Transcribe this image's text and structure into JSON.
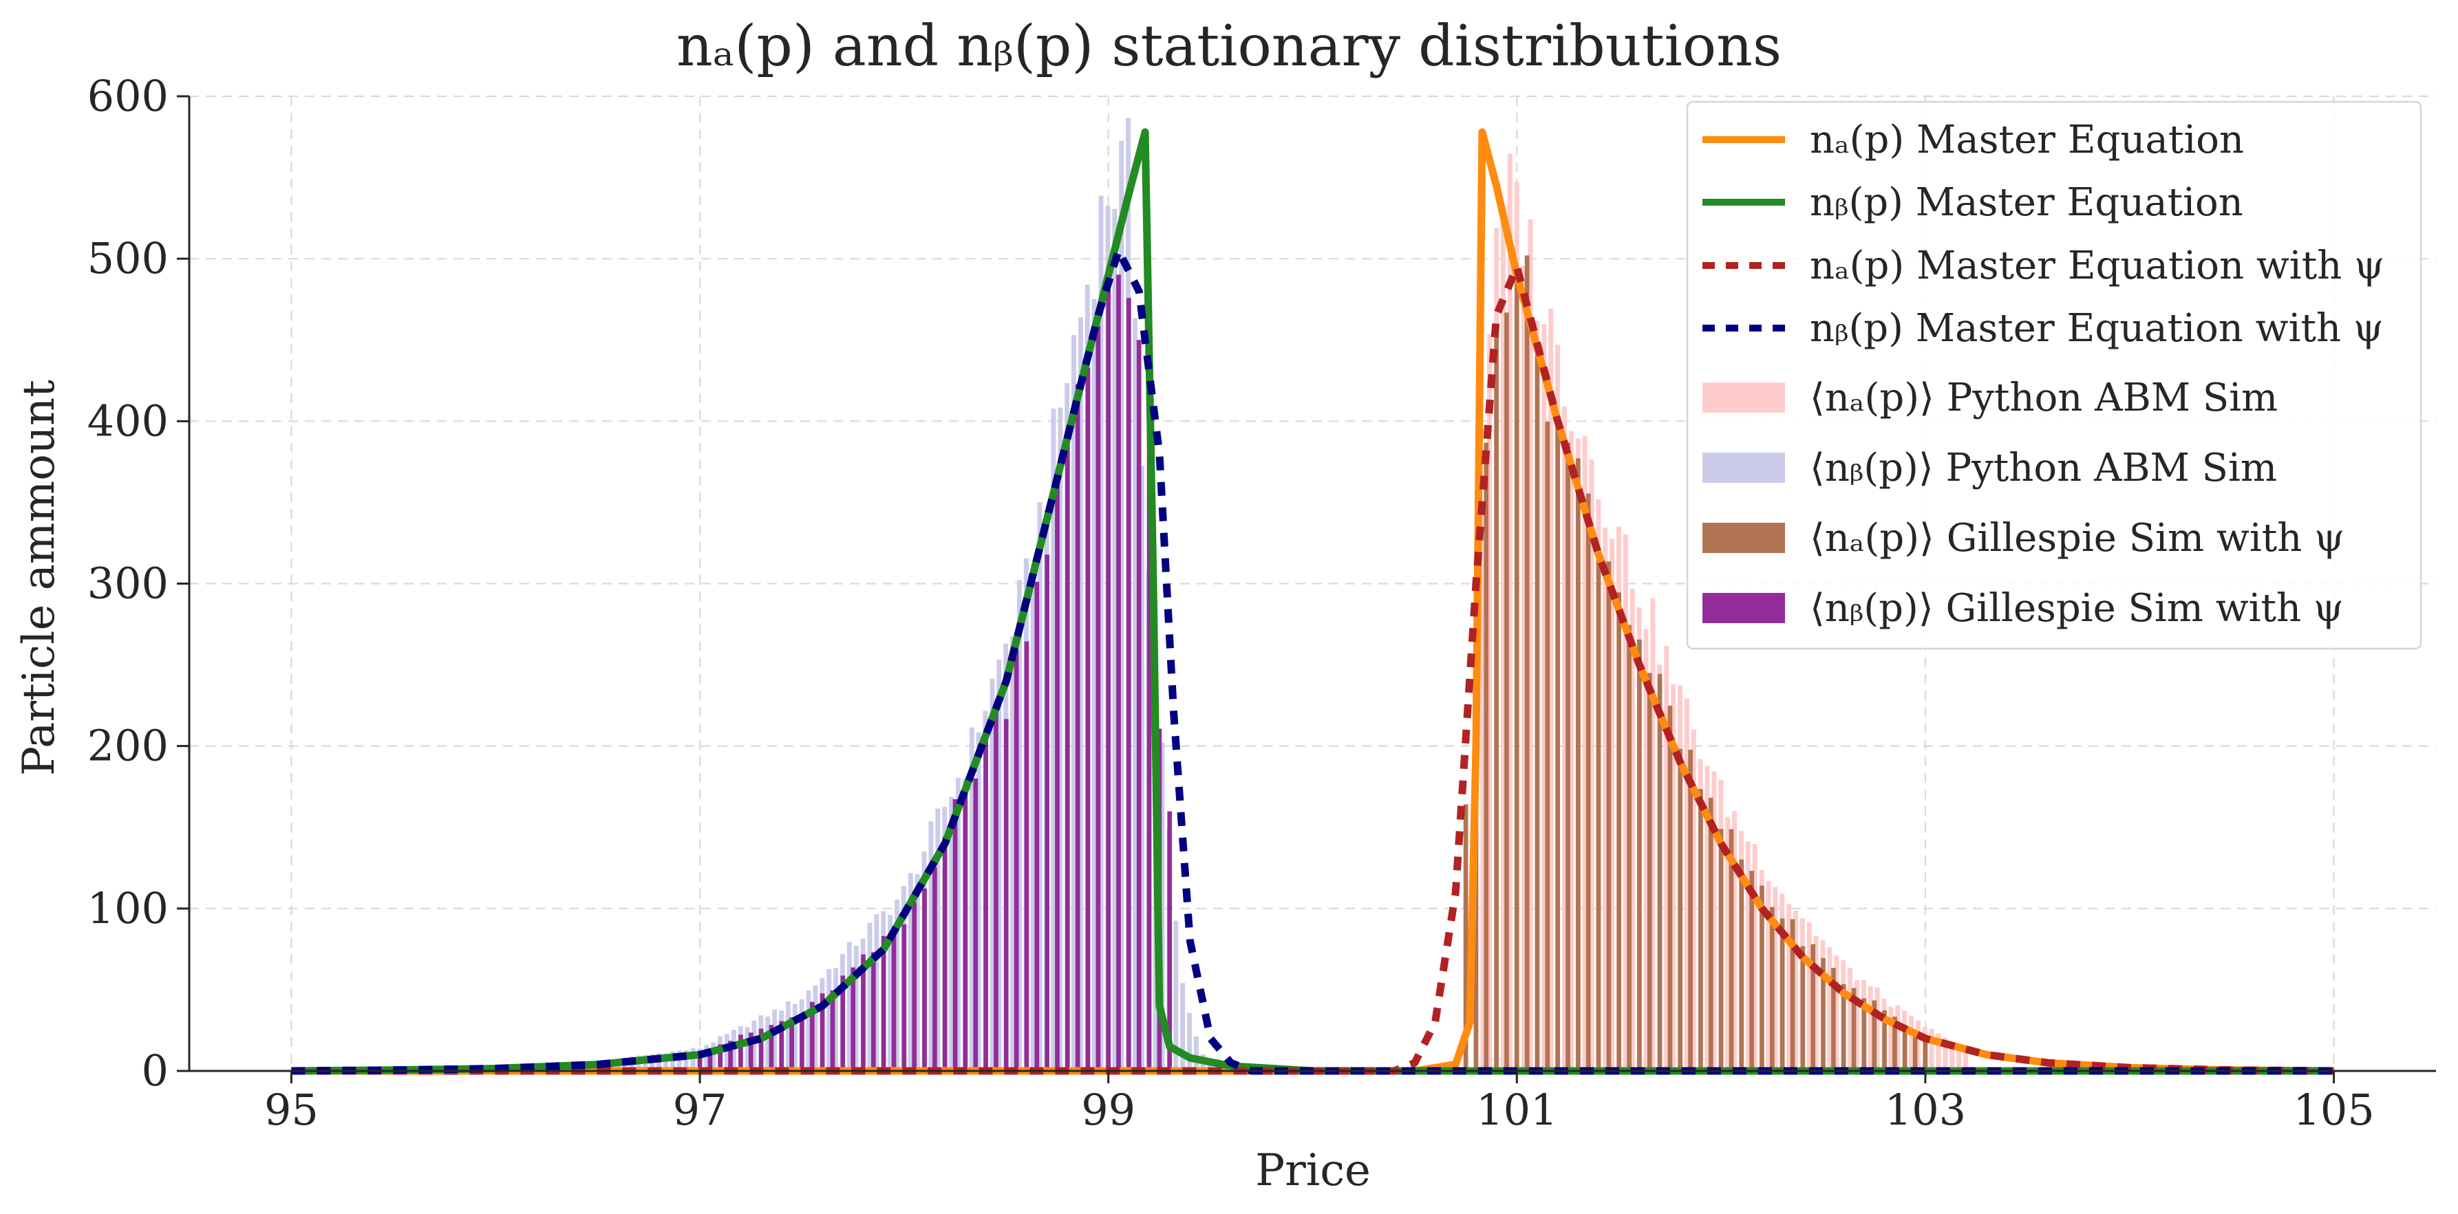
{
  "chart_data": {
    "type": "bar",
    "title": "nₐ(p) and nᵦ(p) stationary distributions",
    "xlabel": "Price",
    "ylabel": "Particle ammount",
    "xlim": [
      94.5,
      105.5
    ],
    "ylim": [
      0,
      600
    ],
    "xticks": [
      95,
      97,
      99,
      101,
      103,
      105
    ],
    "yticks": [
      0,
      100,
      200,
      300,
      400,
      500,
      600
    ],
    "grid": true,
    "legend_position": "top-right",
    "colors": {
      "na_master": "#ff8c0f",
      "nb_master": "#228b22",
      "na_psi": "#b22222",
      "nb_psi": "#000080",
      "na_python": "#ffcccc",
      "nb_python": "#ccccea",
      "na_gillespie": "#b07452",
      "nb_gillespie": "#932c99"
    },
    "legend": [
      {
        "key": "na_master",
        "kind": "line",
        "label": "nₐ(p) Master Equation"
      },
      {
        "key": "nb_master",
        "kind": "line",
        "label": "nᵦ(p) Master Equation"
      },
      {
        "key": "na_psi",
        "kind": "dashed",
        "label": "nₐ(p) Master Equation with ψ"
      },
      {
        "key": "nb_psi",
        "kind": "dashed",
        "label": "nᵦ(p) Master Equation with ψ"
      },
      {
        "key": "na_python",
        "kind": "patch",
        "label": "⟨nₐ(p)⟩ Python ABM Sim"
      },
      {
        "key": "nb_python",
        "kind": "patch",
        "label": "⟨nᵦ(p)⟩ Python ABM Sim"
      },
      {
        "key": "na_gillespie",
        "kind": "patch",
        "label": "⟨nₐ(p)⟩ Gillespie Sim with ψ"
      },
      {
        "key": "nb_gillespie",
        "kind": "patch",
        "label": "⟨nᵦ(p)⟩ Gillespie Sim with ψ"
      }
    ],
    "series": [
      {
        "name": "na_master",
        "type": "line",
        "x": [
          95,
          100.5,
          100.7,
          100.77,
          100.8,
          100.83,
          100.9,
          101.0,
          101.2,
          101.4,
          101.6,
          101.8,
          102.0,
          102.2,
          102.4,
          102.6,
          102.8,
          103.0,
          103.3,
          103.6,
          104.0,
          104.5,
          105
        ],
        "y": [
          0,
          0,
          4,
          30,
          200,
          578,
          545,
          490,
          400,
          318,
          250,
          190,
          140,
          100,
          70,
          48,
          32,
          20,
          10,
          5,
          2,
          0.5,
          0
        ]
      },
      {
        "name": "nb_master",
        "type": "line",
        "x": [
          95,
          95.5,
          96.0,
          96.5,
          97.0,
          97.3,
          97.6,
          97.9,
          98.2,
          98.5,
          98.8,
          99.0,
          99.1,
          99.18,
          99.22,
          99.25,
          99.3,
          99.4,
          99.6,
          100.0,
          105
        ],
        "y": [
          0,
          0.5,
          1.5,
          4,
          10,
          20,
          40,
          75,
          140,
          240,
          390,
          490,
          540,
          578,
          300,
          40,
          15,
          8,
          3,
          0,
          0
        ]
      },
      {
        "name": "na_psi",
        "type": "dashed",
        "x": [
          95,
          100.4,
          100.5,
          100.6,
          100.7,
          100.8,
          100.9,
          101.0,
          101.2,
          101.4,
          101.6,
          101.8,
          102.0,
          102.2,
          102.4,
          102.6,
          102.8,
          103.0,
          103.3,
          103.6,
          104.0,
          104.5,
          105
        ],
        "y": [
          0,
          0,
          5,
          30,
          110,
          300,
          465,
          495,
          400,
          318,
          250,
          190,
          140,
          100,
          70,
          48,
          32,
          20,
          10,
          5,
          2,
          0.5,
          0
        ]
      },
      {
        "name": "nb_psi",
        "type": "dashed",
        "x": [
          95,
          95.5,
          96.0,
          96.5,
          97.0,
          97.3,
          97.6,
          97.9,
          98.2,
          98.5,
          98.8,
          98.95,
          99.05,
          99.15,
          99.25,
          99.32,
          99.4,
          99.5,
          99.6,
          99.7,
          105
        ],
        "y": [
          0,
          0.5,
          1.5,
          4,
          10,
          20,
          40,
          75,
          140,
          240,
          390,
          465,
          505,
          480,
          380,
          220,
          80,
          20,
          5,
          0,
          0
        ]
      }
    ],
    "histograms": [
      {
        "name": "nb_python",
        "x_start": 96.5,
        "x_end": 99.5,
        "bin_width": 0.0333,
        "profile_x": [
          96.5,
          97.0,
          97.5,
          98.0,
          98.3,
          98.6,
          98.8,
          99.0,
          99.1,
          99.2,
          99.35,
          99.45,
          99.5
        ],
        "profile_y": [
          6,
          14,
          45,
          110,
          190,
          300,
          430,
          545,
          555,
          300,
          60,
          12,
          5
        ]
      },
      {
        "name": "nb_gillespie",
        "x_start": 97.0,
        "x_end": 99.3,
        "bin_width": 0.05,
        "profile_x": [
          97.0,
          97.5,
          98.0,
          98.5,
          98.8,
          99.0,
          99.1,
          99.2,
          99.25,
          99.3
        ],
        "profile_y": [
          12,
          35,
          90,
          230,
          380,
          490,
          500,
          400,
          200,
          165
        ]
      },
      {
        "name": "na_python",
        "x_start": 100.8,
        "x_end": 103.2,
        "bin_width": 0.0333,
        "profile_x": [
          100.8,
          100.85,
          100.95,
          101.0,
          101.2,
          101.5,
          101.8,
          102.0,
          102.3,
          102.6,
          102.9,
          103.2
        ],
        "profile_y": [
          150,
          450,
          540,
          535,
          440,
          330,
          230,
          170,
          110,
          65,
          35,
          12
        ]
      },
      {
        "name": "na_gillespie",
        "x_start": 100.75,
        "x_end": 103.0,
        "bin_width": 0.05,
        "profile_x": [
          100.75,
          100.8,
          100.9,
          101.0,
          101.2,
          101.5,
          101.8,
          102.0,
          102.3,
          102.6,
          103.0
        ],
        "profile_y": [
          170,
          290,
          480,
          500,
          400,
          300,
          200,
          150,
          95,
          55,
          20
        ]
      }
    ]
  }
}
